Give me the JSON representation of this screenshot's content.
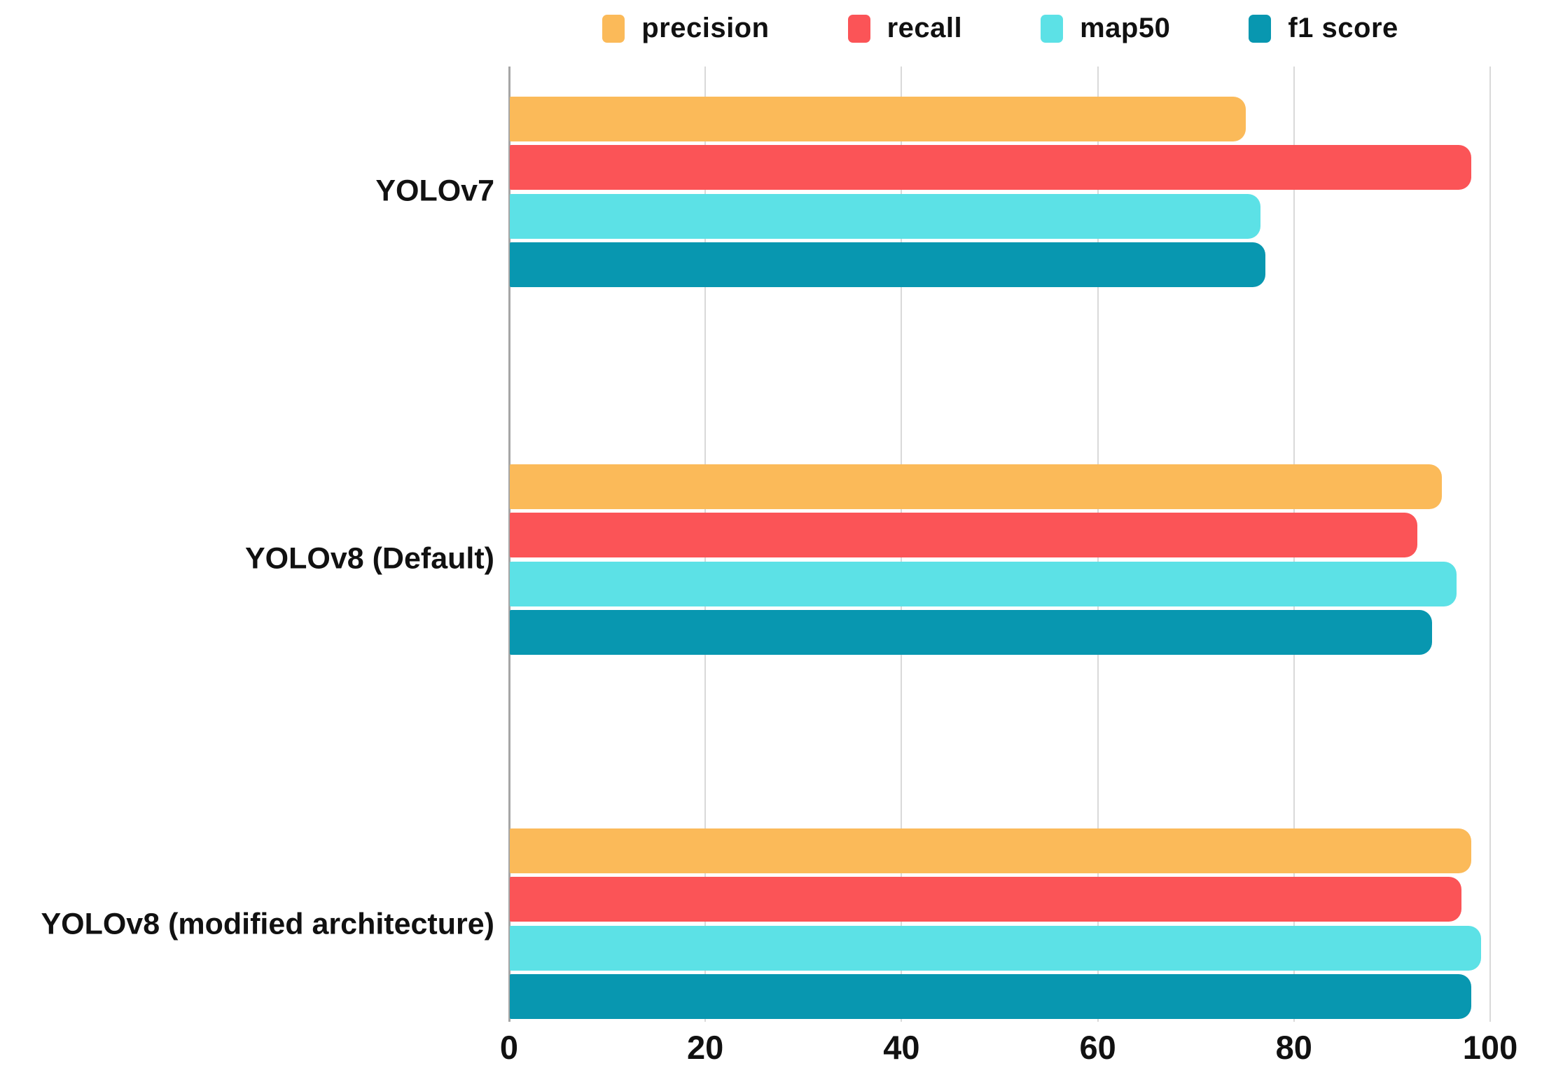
{
  "chart_data": {
    "type": "bar",
    "orientation": "horizontal",
    "title": "",
    "xlabel": "",
    "ylabel": "",
    "categories": [
      "YOLOv7",
      "YOLOv8 (Default)",
      "YOLOv8 (modified architecture)"
    ],
    "series": [
      {
        "name": "precision",
        "color": "#FBBA59",
        "values": [
          75,
          95,
          98
        ]
      },
      {
        "name": "recall",
        "color": "#FB5457",
        "values": [
          98,
          92.5,
          97
        ]
      },
      {
        "name": "map50",
        "color": "#5CE1E6",
        "values": [
          76.5,
          96.5,
          99
        ]
      },
      {
        "name": "f1 score",
        "color": "#0897B0",
        "values": [
          77,
          94,
          98
        ]
      }
    ],
    "xlim": [
      0,
      100
    ],
    "xticks": [
      0,
      20,
      40,
      60,
      80,
      100
    ],
    "grid": "vertical-only",
    "legend_position": "top-center",
    "tick_labels": [
      "0",
      "20",
      "40",
      "60",
      "80",
      "100"
    ]
  },
  "colors": {
    "background": "#ffffff",
    "grid_line": "#d9d9d9",
    "axis_line": "#a6a6a6",
    "text": "#111111"
  }
}
